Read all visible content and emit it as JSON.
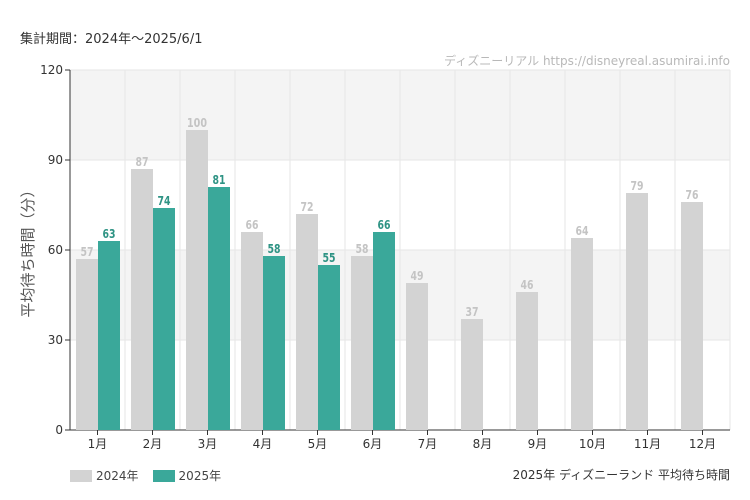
{
  "header": {
    "period": "集計期間：2024年～2025/6/1",
    "watermark": "ディズニーリアル https://disneyreal.asumirai.info"
  },
  "caption": "2025年 ディズニーランド 平均待ち時間",
  "colors": {
    "series_2024": "#d3d3d3",
    "series_2025": "#3aa89a",
    "label_2024": "#c4c4c4",
    "label_2025": "#2e9384",
    "band": "#f4f4f4",
    "grid": "#e6e6e6"
  },
  "chart_data": {
    "type": "bar",
    "title": "",
    "xlabel": "",
    "ylabel": "平均待ち時間（分）",
    "ylim": [
      0,
      120
    ],
    "yticks": [
      0,
      30,
      60,
      90,
      120
    ],
    "grid": true,
    "legend": "bottom-left",
    "categories": [
      "1月",
      "2月",
      "3月",
      "4月",
      "5月",
      "6月",
      "7月",
      "8月",
      "9月",
      "10月",
      "11月",
      "12月"
    ],
    "series": [
      {
        "name": "2024年",
        "values": [
          57,
          87,
          100,
          66,
          72,
          58,
          49,
          37,
          46,
          64,
          79,
          76
        ]
      },
      {
        "name": "2025年",
        "values": [
          63,
          74,
          81,
          58,
          55,
          66,
          null,
          null,
          null,
          null,
          null,
          null
        ]
      }
    ]
  }
}
